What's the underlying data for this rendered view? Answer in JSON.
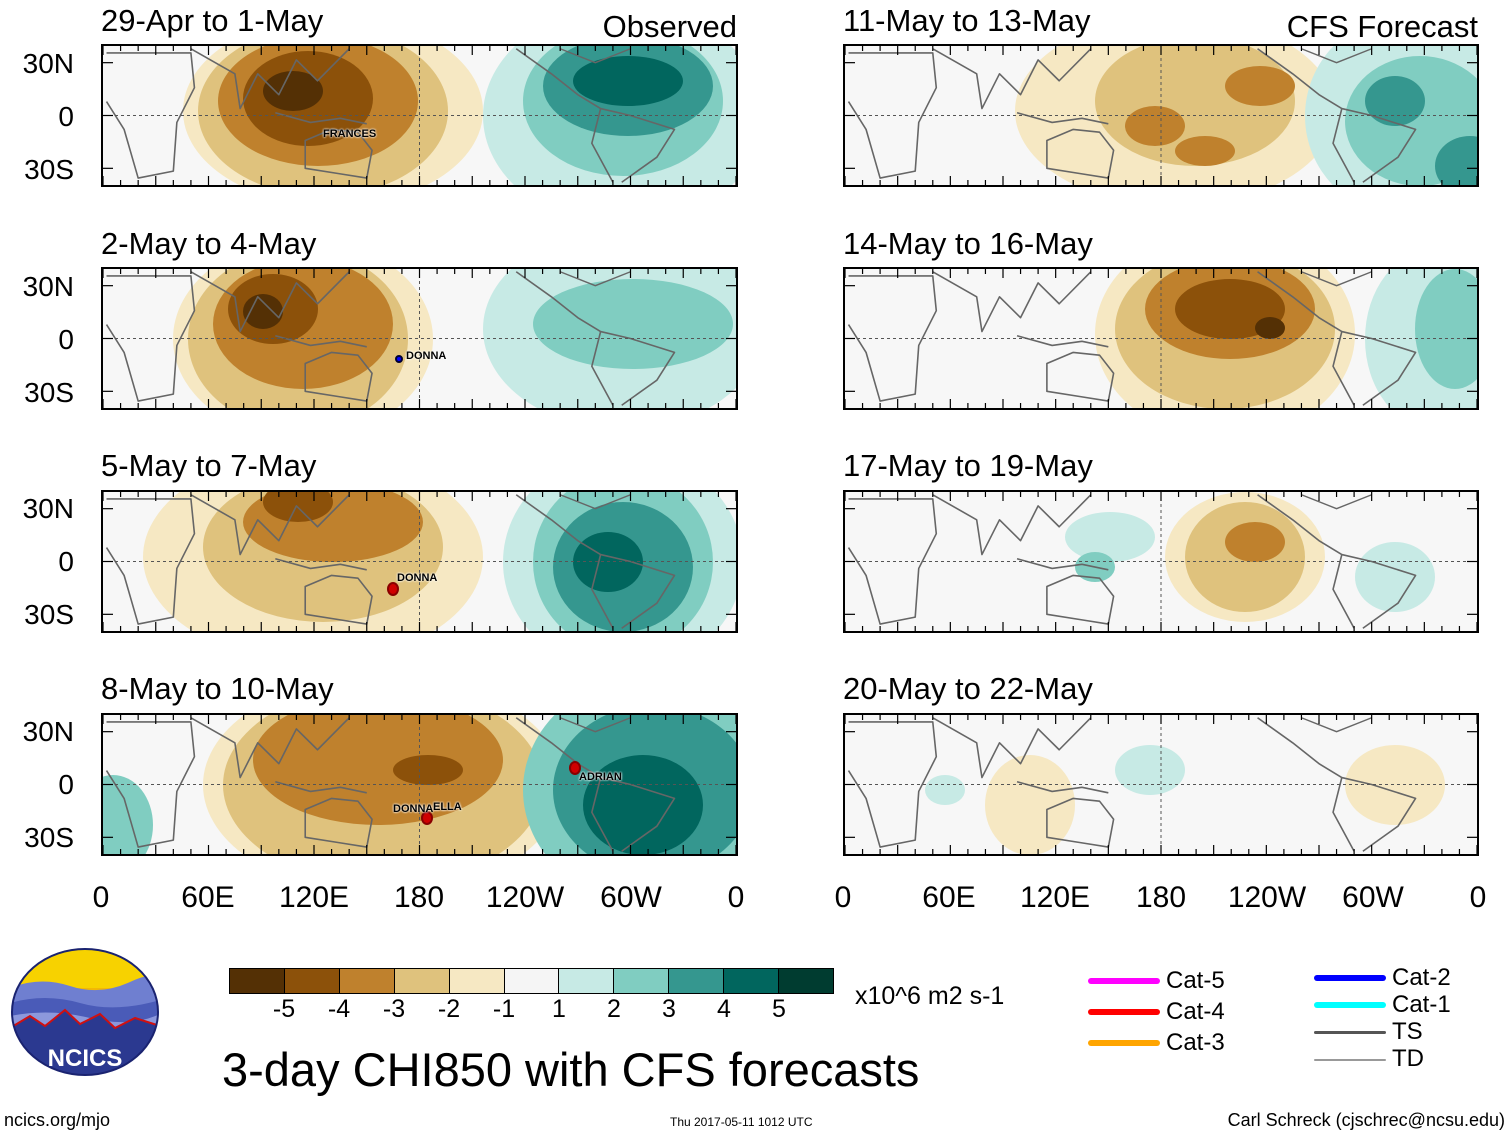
{
  "headers": {
    "observed": "Observed",
    "forecast": "CFS Forecast"
  },
  "panels_left": [
    {
      "title": "29-Apr to 1-May"
    },
    {
      "title": "2-May to 4-May"
    },
    {
      "title": "5-May to 7-May"
    },
    {
      "title": "8-May to 10-May"
    }
  ],
  "panels_right": [
    {
      "title": "11-May to 13-May"
    },
    {
      "title": "14-May to 16-May"
    },
    {
      "title": "17-May to 19-May"
    },
    {
      "title": "20-May to 22-May"
    }
  ],
  "lat_labels": [
    "30N",
    "0",
    "30S"
  ],
  "lon_labels": [
    "0",
    "60E",
    "120E",
    "180",
    "120W",
    "60W",
    "0"
  ],
  "storms": {
    "p1": [
      "FRANCES"
    ],
    "p2": [
      "DONNA"
    ],
    "p3": [
      "DONNA"
    ],
    "p4": [
      "ADRIAN",
      "DONNA",
      "ELLA"
    ]
  },
  "colorbar": {
    "colors": [
      "#543005",
      "#8c510a",
      "#bf812d",
      "#dfc27d",
      "#f6e8c3",
      "#f5f5f5",
      "#c7eae5",
      "#80cdc1",
      "#35978f",
      "#01665e",
      "#003c30"
    ],
    "ticks": [
      "-5",
      "-4",
      "-3",
      "-2",
      "-1",
      "1",
      "2",
      "3",
      "4",
      "5"
    ],
    "units": "x10^6 m2 s-1"
  },
  "main_title": "3-day CHI850 with CFS forecasts",
  "logo_text": "NCICS",
  "footer": {
    "url": "ncics.org/mjo",
    "timestamp": "Thu 2017-05-11 1012 UTC",
    "author": "Carl Schreck (cjschrec@ncsu.edu)"
  },
  "legend": [
    {
      "label": "Cat-5",
      "color": "#ff00ff"
    },
    {
      "label": "Cat-4",
      "color": "#ff0000"
    },
    {
      "label": "Cat-3",
      "color": "#ffa500"
    },
    {
      "label": "Cat-2",
      "color": "#0000ff"
    },
    {
      "label": "Cat-1",
      "color": "#00ffff"
    },
    {
      "label": "TS",
      "color": "#555555"
    },
    {
      "label": "TD",
      "color": "#999999"
    }
  ]
}
